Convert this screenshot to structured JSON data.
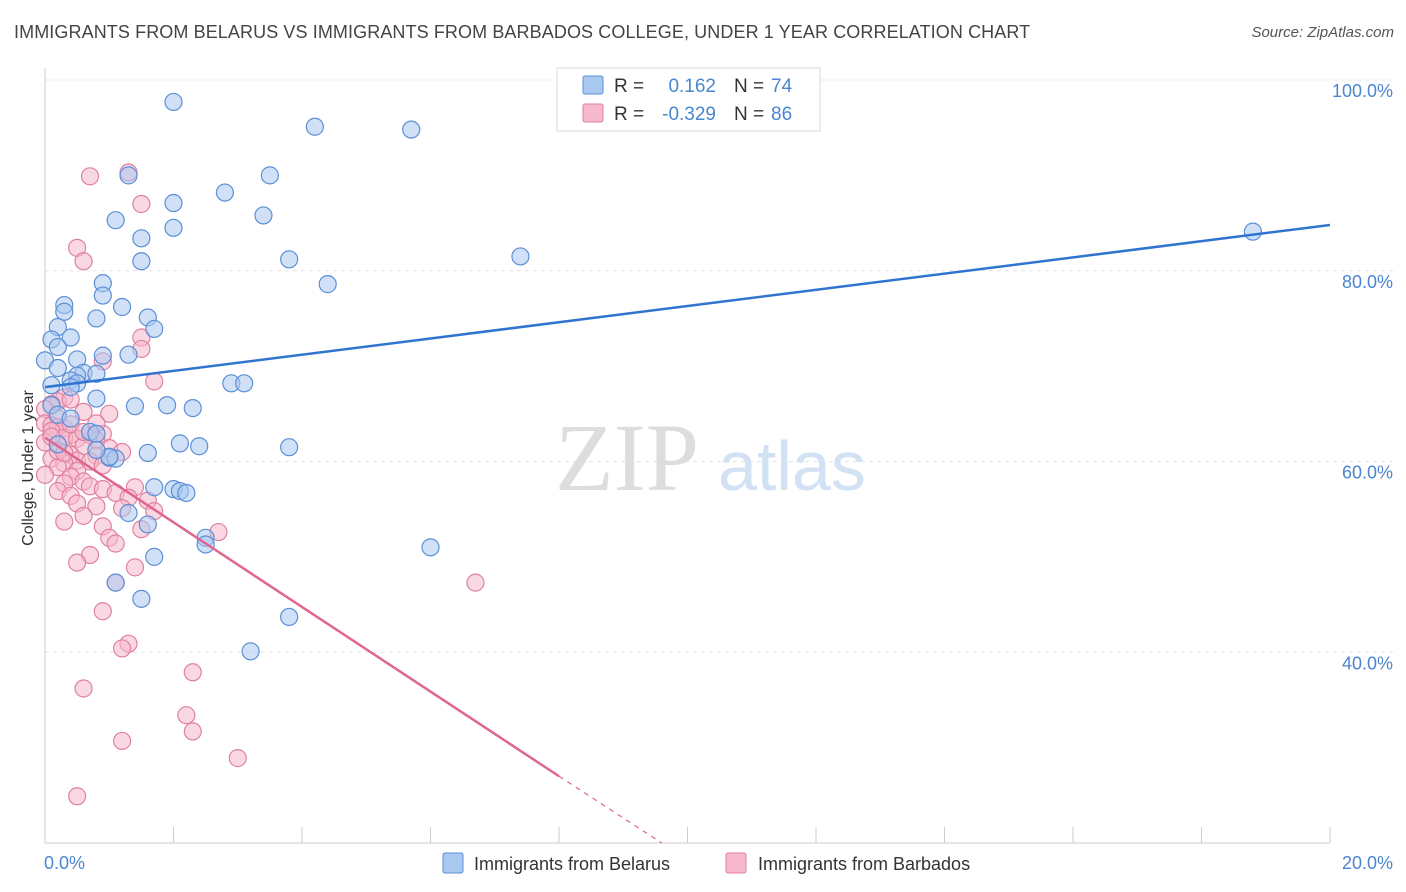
{
  "chart_data": {
    "type": "scatter",
    "title": "IMMIGRANTS FROM BELARUS VS IMMIGRANTS FROM BARBADOS COLLEGE, UNDER 1 YEAR CORRELATION CHART",
    "source": "Source: ZipAtlas.com",
    "xlabel": "",
    "ylabel": "College, Under 1 year",
    "xlim": [
      0,
      20
    ],
    "ylim": [
      20,
      100
    ],
    "x_tick_labels": [
      "0.0%",
      "20.0%"
    ],
    "y_tick_labels": [
      "100.0%",
      "80.0%",
      "60.0%",
      "40.0%"
    ],
    "y_ticks": [
      100,
      80,
      60,
      40
    ],
    "watermark": {
      "zip": "ZIP",
      "atlas": "atlas"
    },
    "legend": [
      {
        "name": "Immigrants from Belarus",
        "r_label": "R =",
        "r_value": "0.162",
        "n_label": "N =",
        "n_value": "74"
      },
      {
        "name": "Immigrants from Barbados",
        "r_label": "R =",
        "r_value": "-0.329",
        "n_label": "N =",
        "n_value": "86"
      }
    ],
    "colors": {
      "belarus_fill": "#a9c8f0",
      "belarus_stroke": "#5b8fd6",
      "belarus_line": "#2f75d0",
      "barbados_fill": "#f6b8cc",
      "barbados_stroke": "#e0829f",
      "barbados_line": "#e0668f",
      "axis_text": "#4a86d0",
      "grid": "#e4e4e4"
    },
    "series": [
      {
        "name": "Immigrants from Belarus",
        "trend": {
          "x": [
            0,
            20
          ],
          "y": [
            67.8,
            84.8
          ]
        },
        "points": [
          [
            2.0,
            97.7
          ],
          [
            4.2,
            95.1
          ],
          [
            5.7,
            94.8
          ],
          [
            1.3,
            90.0
          ],
          [
            3.5,
            90.0
          ],
          [
            2.8,
            88.2
          ],
          [
            2.0,
            87.1
          ],
          [
            1.1,
            85.3
          ],
          [
            3.4,
            85.8
          ],
          [
            2.0,
            84.5
          ],
          [
            1.5,
            83.4
          ],
          [
            18.8,
            84.1
          ],
          [
            1.5,
            81.0
          ],
          [
            3.8,
            81.2
          ],
          [
            7.4,
            81.5
          ],
          [
            4.4,
            78.6
          ],
          [
            0.9,
            78.7
          ],
          [
            0.9,
            77.4
          ],
          [
            0.3,
            76.4
          ],
          [
            1.2,
            76.2
          ],
          [
            0.3,
            75.7
          ],
          [
            1.6,
            75.1
          ],
          [
            0.8,
            75.0
          ],
          [
            0.2,
            74.1
          ],
          [
            1.7,
            73.9
          ],
          [
            0.4,
            73.0
          ],
          [
            0.1,
            72.8
          ],
          [
            0.2,
            72.0
          ],
          [
            0.9,
            71.1
          ],
          [
            1.3,
            71.2
          ],
          [
            0.5,
            70.7
          ],
          [
            0.0,
            70.6
          ],
          [
            0.2,
            69.8
          ],
          [
            0.6,
            69.3
          ],
          [
            0.5,
            69.0
          ],
          [
            0.8,
            69.2
          ],
          [
            0.4,
            68.5
          ],
          [
            0.5,
            68.2
          ],
          [
            0.1,
            68.0
          ],
          [
            0.4,
            67.8
          ],
          [
            2.9,
            68.2
          ],
          [
            3.1,
            68.2
          ],
          [
            0.8,
            66.6
          ],
          [
            0.1,
            65.9
          ],
          [
            1.4,
            65.8
          ],
          [
            1.9,
            65.9
          ],
          [
            2.3,
            65.6
          ],
          [
            0.2,
            64.9
          ],
          [
            0.4,
            64.5
          ],
          [
            0.7,
            63.1
          ],
          [
            0.8,
            62.9
          ],
          [
            2.1,
            61.9
          ],
          [
            2.4,
            61.6
          ],
          [
            3.8,
            61.5
          ],
          [
            1.6,
            60.9
          ],
          [
            1.0,
            60.4
          ],
          [
            1.1,
            60.3
          ],
          [
            1.7,
            57.3
          ],
          [
            2.0,
            57.1
          ],
          [
            2.1,
            56.9
          ],
          [
            2.2,
            56.7
          ],
          [
            1.3,
            54.6
          ],
          [
            1.6,
            53.4
          ],
          [
            2.5,
            52.0
          ],
          [
            2.5,
            51.3
          ],
          [
            6.0,
            51.0
          ],
          [
            1.7,
            50.0
          ],
          [
            1.1,
            47.3
          ],
          [
            1.5,
            45.6
          ],
          [
            3.8,
            43.7
          ],
          [
            3.2,
            40.1
          ],
          [
            0.2,
            61.8
          ],
          [
            1.0,
            60.5
          ],
          [
            0.8,
            61.2
          ]
        ]
      },
      {
        "name": "Immigrants from Barbados",
        "trend": {
          "x": [
            0,
            8.0
          ],
          "y": [
            62.5,
            27.0
          ]
        },
        "trend_dashed": {
          "x": [
            8.0,
            9.6
          ],
          "y": [
            27.0,
            20.0
          ]
        },
        "points": [
          [
            1.3,
            90.3
          ],
          [
            0.7,
            89.9
          ],
          [
            1.5,
            87.0
          ],
          [
            0.5,
            82.4
          ],
          [
            0.6,
            81.0
          ],
          [
            1.5,
            73.0
          ],
          [
            1.5,
            71.8
          ],
          [
            0.9,
            70.5
          ],
          [
            1.7,
            68.4
          ],
          [
            0.3,
            66.7
          ],
          [
            0.2,
            66.3
          ],
          [
            0.4,
            66.5
          ],
          [
            0.1,
            66.0
          ],
          [
            0.0,
            65.5
          ],
          [
            0.6,
            65.2
          ],
          [
            1.0,
            65.0
          ],
          [
            0.2,
            64.5
          ],
          [
            0.0,
            64.0
          ],
          [
            0.1,
            63.8
          ],
          [
            0.2,
            63.6
          ],
          [
            0.3,
            63.5
          ],
          [
            0.1,
            63.2
          ],
          [
            0.4,
            62.8
          ],
          [
            0.7,
            62.8
          ],
          [
            0.9,
            62.9
          ],
          [
            0.3,
            62.5
          ],
          [
            0.5,
            62.4
          ],
          [
            0.8,
            62.2
          ],
          [
            0.0,
            62.0
          ],
          [
            0.2,
            61.7
          ],
          [
            0.6,
            61.6
          ],
          [
            1.0,
            61.4
          ],
          [
            1.2,
            61.0
          ],
          [
            0.4,
            60.7
          ],
          [
            0.8,
            60.6
          ],
          [
            0.1,
            60.3
          ],
          [
            0.5,
            60.1
          ],
          [
            0.7,
            60.0
          ],
          [
            0.3,
            59.8
          ],
          [
            0.9,
            59.6
          ],
          [
            0.2,
            59.4
          ],
          [
            0.5,
            59.0
          ],
          [
            0.0,
            58.6
          ],
          [
            0.4,
            58.4
          ],
          [
            0.6,
            57.9
          ],
          [
            0.3,
            57.7
          ],
          [
            0.7,
            57.4
          ],
          [
            1.4,
            57.3
          ],
          [
            0.9,
            57.1
          ],
          [
            0.2,
            56.9
          ],
          [
            1.1,
            56.7
          ],
          [
            0.4,
            56.4
          ],
          [
            1.3,
            56.2
          ],
          [
            1.6,
            55.9
          ],
          [
            0.5,
            55.6
          ],
          [
            0.8,
            55.3
          ],
          [
            1.2,
            55.1
          ],
          [
            1.7,
            54.8
          ],
          [
            0.6,
            54.3
          ],
          [
            0.3,
            53.7
          ],
          [
            0.9,
            53.2
          ],
          [
            1.5,
            52.9
          ],
          [
            2.7,
            52.6
          ],
          [
            1.0,
            52.0
          ],
          [
            1.1,
            51.4
          ],
          [
            0.7,
            50.2
          ],
          [
            0.5,
            49.4
          ],
          [
            1.4,
            48.9
          ],
          [
            6.7,
            47.3
          ],
          [
            1.1,
            47.3
          ],
          [
            0.9,
            44.3
          ],
          [
            1.3,
            40.9
          ],
          [
            1.2,
            40.4
          ],
          [
            2.3,
            37.9
          ],
          [
            0.6,
            36.2
          ],
          [
            2.2,
            33.4
          ],
          [
            2.3,
            31.7
          ],
          [
            1.2,
            30.7
          ],
          [
            3.0,
            28.9
          ],
          [
            0.5,
            24.9
          ],
          [
            0.1,
            62.6
          ],
          [
            0.2,
            61.1
          ],
          [
            0.3,
            60.9
          ],
          [
            0.4,
            63.9
          ],
          [
            0.6,
            63.1
          ],
          [
            0.8,
            64.0
          ]
        ]
      }
    ]
  }
}
